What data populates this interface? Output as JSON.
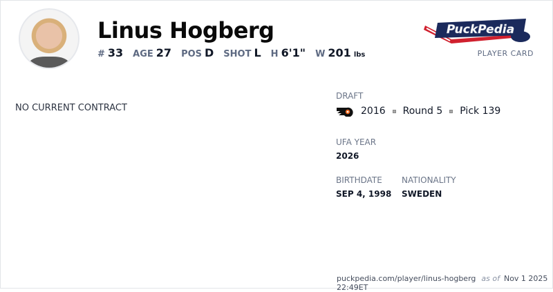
{
  "player": {
    "name": "Linus Hogberg",
    "stats": [
      {
        "label": "#",
        "value": "33"
      },
      {
        "label": "AGE",
        "value": "27"
      },
      {
        "label": "POS",
        "value": "D"
      },
      {
        "label": "SHOT",
        "value": "L"
      },
      {
        "label": "H",
        "value": "6'1\""
      },
      {
        "label": "W",
        "value": "201",
        "unit": "lbs"
      }
    ]
  },
  "brand": {
    "logo_text": "PuckPedia",
    "card_label": "PLAYER CARD",
    "colors": {
      "navy": "#1b2a5c",
      "red": "#d0202e"
    }
  },
  "contract": {
    "status": "NO CURRENT CONTRACT"
  },
  "draft": {
    "label": "DRAFT",
    "team_logo": "philadelphia-flyers-logo",
    "year": "2016",
    "round": "Round 5",
    "pick": "Pick 139"
  },
  "ufa": {
    "label": "UFA YEAR",
    "value": "2026"
  },
  "birthdate": {
    "label": "BIRTHDATE",
    "value": "SEP 4, 1998"
  },
  "nationality": {
    "label": "NATIONALITY",
    "value": "SWEDEN"
  },
  "footer": {
    "url": "puckpedia.com/player/linus-hogberg",
    "as_of": "as of",
    "timestamp": "Nov 1 2025 22:49ET"
  }
}
